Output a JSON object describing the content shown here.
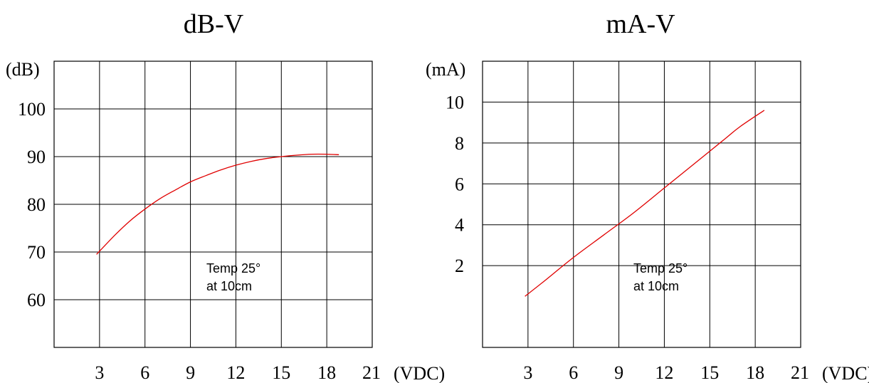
{
  "chart_data": [
    {
      "type": "line",
      "title": "dB-V",
      "ylabel": "(dB)",
      "xunit": "(VDC)",
      "x_ticks": [
        "3",
        "6",
        "9",
        "12",
        "15",
        "18",
        "21"
      ],
      "y_ticks": [
        "100",
        "90",
        "80",
        "70",
        "60"
      ],
      "xlim": [
        0,
        21
      ],
      "ylim": [
        50,
        110
      ],
      "grid": true,
      "annotation": [
        "Temp 25°",
        "at 10cm"
      ],
      "series": [
        {
          "color": "#e00000",
          "x": [
            2.8,
            4,
            5,
            6,
            7,
            8,
            9,
            10,
            11,
            12,
            13,
            14,
            15,
            16,
            17,
            18,
            18.8
          ],
          "y": [
            69.5,
            73.5,
            76.5,
            79,
            81.2,
            83,
            84.7,
            86,
            87.2,
            88.2,
            89,
            89.6,
            90,
            90.3,
            90.5,
            90.5,
            90.4
          ]
        }
      ]
    },
    {
      "type": "line",
      "title": "mA-V",
      "ylabel": "(mA)",
      "xunit": "(VDC)",
      "x_ticks": [
        "3",
        "6",
        "9",
        "12",
        "15",
        "18",
        "21"
      ],
      "y_ticks": [
        "10",
        "8",
        "6",
        "4",
        "2"
      ],
      "xlim": [
        0,
        21
      ],
      "ylim": [
        -2,
        12
      ],
      "grid": true,
      "annotation": [
        "Temp 25°",
        "at 10cm"
      ],
      "series": [
        {
          "color": "#e00000",
          "x": [
            2.8,
            4,
            6,
            8,
            10,
            12,
            14,
            16,
            17,
            18.6
          ],
          "y": [
            0.5,
            1.2,
            2.4,
            3.5,
            4.6,
            5.8,
            7.0,
            8.2,
            8.8,
            9.6
          ]
        }
      ]
    }
  ]
}
